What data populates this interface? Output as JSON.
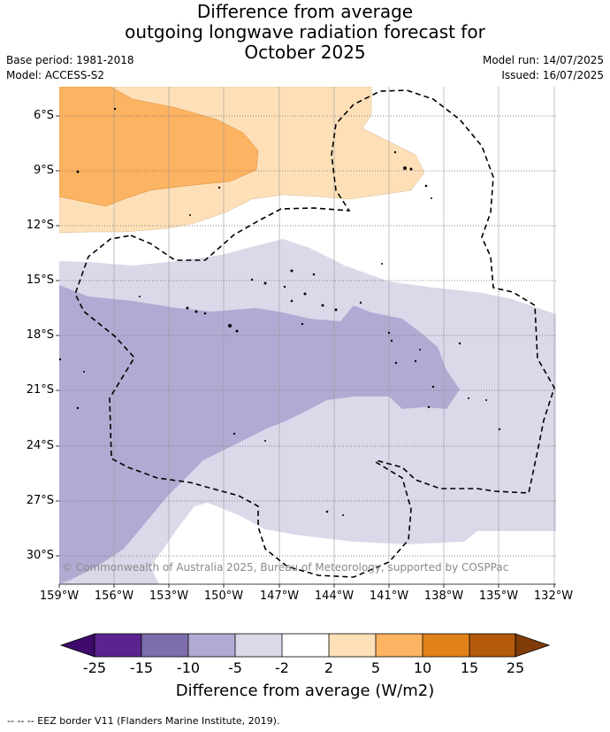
{
  "title": {
    "line1": "Difference from average",
    "line2": "outgoing longwave radiation forecast for",
    "line3": "October 2025"
  },
  "meta": {
    "base_period": "Base period: 1981-2018",
    "model": "Model: ACCESS-S2",
    "model_run": "Model run: 14/07/2025",
    "issued": "Issued: 16/07/2025"
  },
  "map": {
    "lat_ticks": [
      "6°S",
      "9°S",
      "12°S",
      "15°S",
      "18°S",
      "21°S",
      "24°S",
      "27°S",
      "30°S"
    ],
    "lon_ticks": [
      "159°W",
      "156°W",
      "153°W",
      "150°W",
      "147°W",
      "144°W",
      "141°W",
      "138°W",
      "135°W",
      "132°W"
    ],
    "copyright": "© Commonwealth of Australia 2025, Bureau of Meteorology, supported by COSPPac",
    "colors": {
      "pos_5_10": "#fdb462",
      "pos_2_5": "#fde0b8",
      "neutral": "#ffffff",
      "neg_2_5": "#d9d9ea",
      "neg_5_10": "#b1abd3"
    }
  },
  "colorbar": {
    "ticks": [
      "-25",
      "-15",
      "-10",
      "-5",
      "-2",
      "2",
      "5",
      "10",
      "15",
      "25"
    ],
    "colors": [
      "#3f0a6b",
      "#5a2390",
      "#7e6dac",
      "#b1abd3",
      "#d9d9ea",
      "#ffffff",
      "#fde0b8",
      "#fdb462",
      "#e0811a",
      "#b35a0c",
      "#7f3b08"
    ],
    "title": "Difference from average (W/m2)"
  },
  "footer": "--  --  -- EEZ border V11 (Flanders Marine Institute, 2019)."
}
